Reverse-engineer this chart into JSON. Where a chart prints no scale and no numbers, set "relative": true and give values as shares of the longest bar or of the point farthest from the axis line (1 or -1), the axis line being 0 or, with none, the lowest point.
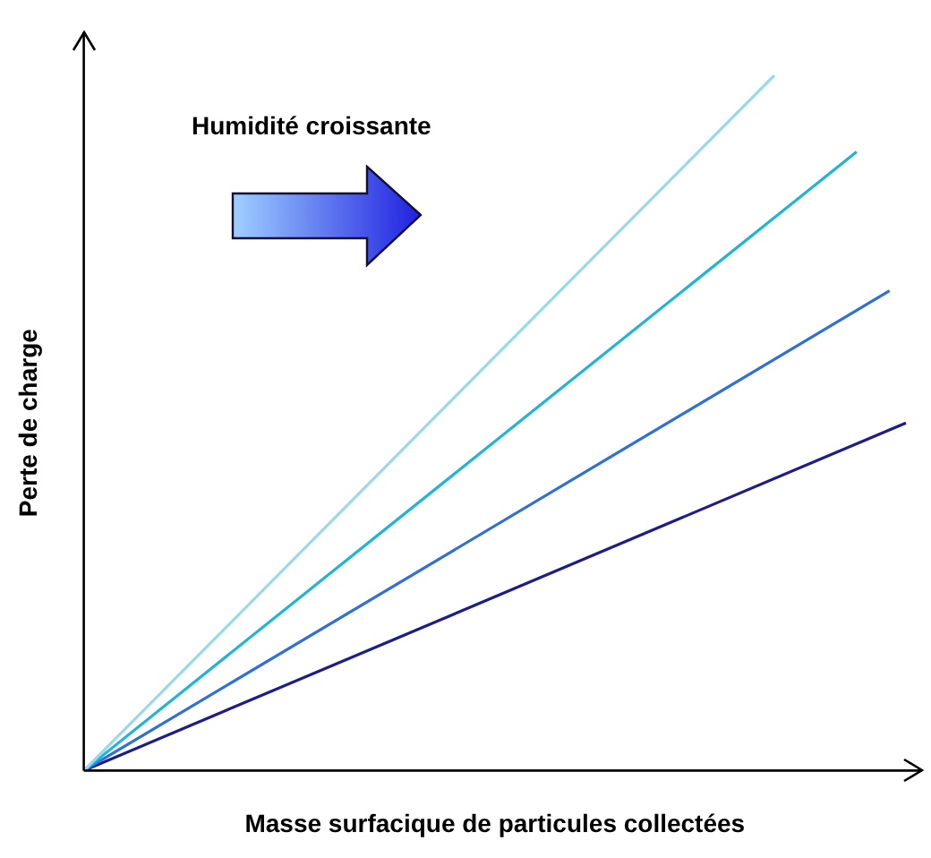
{
  "chart_data": {
    "type": "line",
    "relative": true,
    "xlabel": "Masse surfacique de particules collectées",
    "ylabel": "Perte de charge",
    "annotations": [
      "Humidité croissante"
    ],
    "legend": false,
    "grid": false,
    "marker": "none",
    "line_style": "solid",
    "categories": [
      null,
      null,
      null,
      null,
      null,
      null,
      null,
      null,
      null,
      null,
      null,
      null,
      null,
      null,
      null,
      null,
      null,
      null,
      null,
      null,
      null,
      null,
      null,
      null,
      null,
      null,
      null,
      null,
      null,
      null,
      null,
      null,
      null,
      null,
      null,
      null,
      null,
      null,
      null,
      null,
      null,
      null,
      null,
      null,
      null,
      null,
      null,
      null,
      null,
      null,
      null
    ],
    "series": [
      {
        "color": "#99d9ea",
        "values": [
          0,
          null,
          null,
          null,
          null,
          null,
          null,
          null,
          null,
          null,
          null,
          null,
          null,
          null,
          null,
          null,
          null,
          null,
          null,
          null,
          null,
          null,
          null,
          null,
          null,
          null,
          null,
          null,
          null,
          null,
          null,
          null,
          null,
          null,
          null,
          null,
          null,
          null,
          null,
          null,
          null,
          null,
          1,
          null,
          null,
          null,
          null,
          null,
          null,
          null,
          null
        ]
      },
      {
        "color": "#1fb5d8",
        "values": [
          0,
          null,
          null,
          null,
          null,
          null,
          null,
          null,
          null,
          null,
          null,
          null,
          null,
          null,
          null,
          null,
          null,
          null,
          null,
          null,
          null,
          null,
          null,
          null,
          null,
          null,
          null,
          null,
          null,
          null,
          null,
          null,
          null,
          null,
          null,
          null,
          null,
          null,
          null,
          null,
          null,
          null,
          null,
          null,
          null,
          null,
          null,
          0.89,
          null,
          null,
          null
        ]
      },
      {
        "color": "#2f6fd8",
        "values": [
          0,
          null,
          null,
          null,
          null,
          null,
          null,
          null,
          null,
          null,
          null,
          null,
          null,
          null,
          null,
          null,
          null,
          null,
          null,
          null,
          null,
          null,
          null,
          null,
          null,
          null,
          null,
          null,
          null,
          null,
          null,
          null,
          null,
          null,
          null,
          null,
          null,
          null,
          null,
          null,
          null,
          null,
          null,
          null,
          null,
          null,
          null,
          null,
          null,
          0.69,
          null
        ]
      },
      {
        "color": "#1c1c8c",
        "values": [
          0,
          null,
          null,
          null,
          null,
          null,
          null,
          null,
          null,
          null,
          null,
          null,
          null,
          null,
          null,
          null,
          null,
          null,
          null,
          null,
          null,
          null,
          null,
          null,
          null,
          null,
          null,
          null,
          null,
          null,
          null,
          null,
          null,
          null,
          null,
          null,
          null,
          null,
          null,
          null,
          null,
          null,
          null,
          null,
          null,
          null,
          null,
          null,
          null,
          null,
          0.5
        ]
      }
    ]
  }
}
